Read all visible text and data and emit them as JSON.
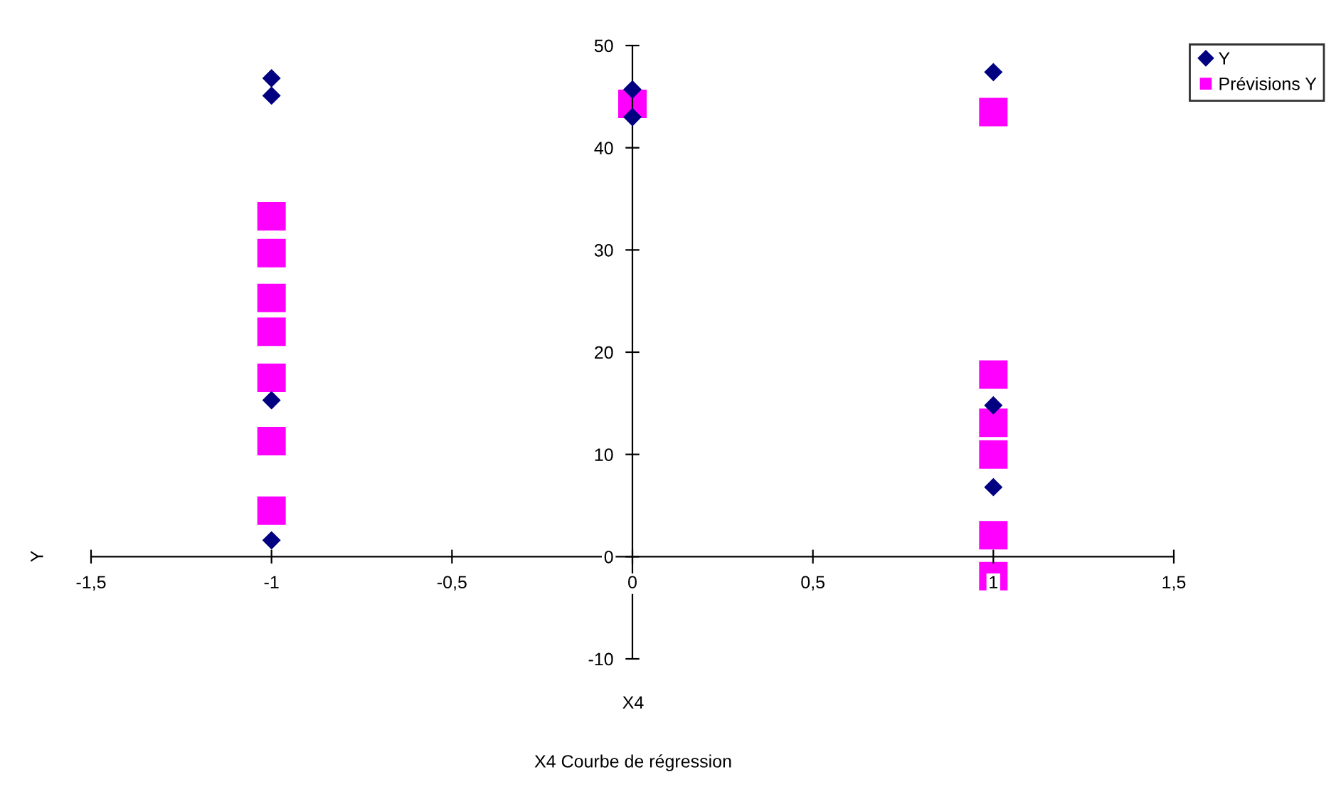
{
  "chart_data": {
    "type": "scatter",
    "title": "X4 Courbe de régression",
    "xlabel": "X4",
    "ylabel": "Y",
    "xlim": [
      -1.5,
      1.5
    ],
    "xticks": [
      {
        "value": -1.5,
        "label": "-1,5"
      },
      {
        "value": -1,
        "label": "-1"
      },
      {
        "value": -0.5,
        "label": "-0,5"
      },
      {
        "value": 0,
        "label": "0"
      },
      {
        "value": 0.5,
        "label": "0,5"
      },
      {
        "value": 1,
        "label": "1"
      },
      {
        "value": 1.5,
        "label": "1,5"
      }
    ],
    "ylim": [
      -10,
      50
    ],
    "yticks": [
      -10,
      0,
      10,
      20,
      30,
      40,
      50
    ],
    "grid": false,
    "legend": "top right",
    "series": [
      {
        "name": "Y",
        "color": "#000080",
        "marker": "diamond",
        "x": [
          -1,
          -1,
          -1,
          -1,
          0,
          0,
          1,
          1,
          1
        ],
        "values": [
          46.8,
          45.1,
          15.3,
          1.6,
          45.7,
          43.0,
          47.4,
          14.8,
          6.8
        ]
      },
      {
        "name": "Prévisions Y",
        "color": "#ff00ff",
        "marker": "square",
        "x": [
          -1,
          -1,
          -1,
          -1,
          -1,
          -1,
          -1,
          0,
          1,
          1,
          1,
          1,
          1,
          1
        ],
        "values": [
          33.3,
          29.7,
          25.3,
          22.0,
          17.5,
          11.3,
          4.5,
          44.3,
          43.5,
          17.8,
          13.1,
          10.0,
          2.1,
          -1.9
        ]
      }
    ]
  }
}
